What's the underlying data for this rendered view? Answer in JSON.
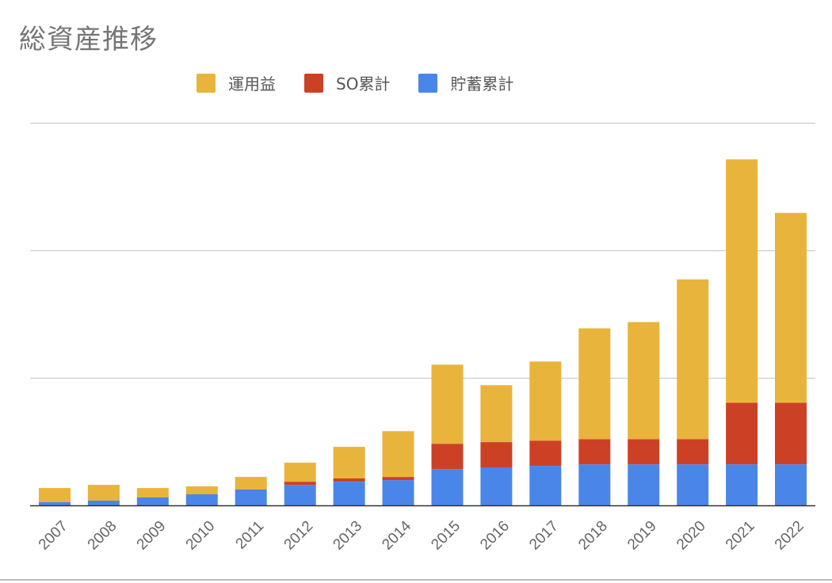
{
  "chart_data": {
    "type": "bar",
    "stacked": true,
    "title": "総資産推移",
    "xlabel": "",
    "ylabel": "",
    "ylim": [
      0,
      3000
    ],
    "gridlines": [
      0,
      1000,
      2000,
      3000
    ],
    "y_tick_labels_visible": false,
    "legend_position": "top-center",
    "categories": [
      "2007",
      "2008",
      "2009",
      "2010",
      "2011",
      "2012",
      "2013",
      "2014",
      "2015",
      "2016",
      "2017",
      "2018",
      "2019",
      "2020",
      "2021",
      "2022"
    ],
    "series": [
      {
        "name": "貯蓄累計",
        "color": "#4a86e8",
        "values": [
          25,
          37,
          62,
          87,
          124,
          161,
          186,
          198,
          285,
          298,
          310,
          322,
          322,
          322,
          322,
          322
        ]
      },
      {
        "name": "SO累計",
        "color": "#cc4125",
        "values": [
          0,
          0,
          0,
          0,
          0,
          25,
          25,
          25,
          198,
          198,
          198,
          198,
          198,
          198,
          483,
          483
        ]
      },
      {
        "name": "運用益",
        "color": "#e8b43b",
        "values": [
          111,
          124,
          74,
          62,
          99,
          149,
          248,
          359,
          620,
          446,
          620,
          868,
          917,
          1252,
          1908,
          1488
        ]
      }
    ],
    "legend_order": [
      "運用益",
      "SO累計",
      "貯蓄累計"
    ]
  }
}
